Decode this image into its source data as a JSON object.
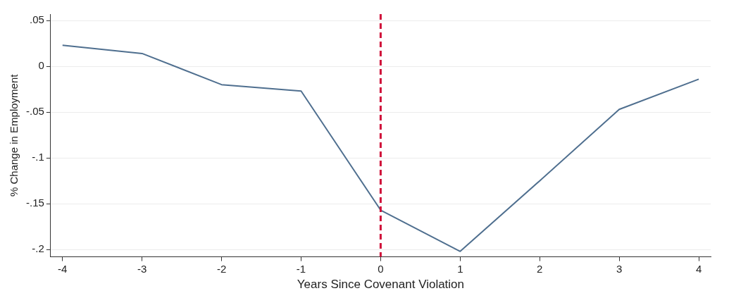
{
  "chart_data": {
    "type": "line",
    "xlabel": "Years Since Covenant Violation",
    "ylabel": "% Change in Employment",
    "x": [
      -4,
      -3,
      -2,
      -1,
      0,
      1,
      2,
      3,
      4
    ],
    "series": [
      {
        "color": "#4f6f8f",
        "values": [
          0.023,
          0.014,
          -0.02,
          -0.027,
          -0.157,
          -0.202,
          -0.125,
          -0.047,
          -0.014
        ]
      }
    ],
    "xlim": [
      -4.15,
      4.15
    ],
    "xticks": [
      -4,
      -3,
      -2,
      -1,
      0,
      1,
      2,
      3,
      4
    ],
    "ylim": [
      -0.208,
      0.057
    ],
    "yticks": [
      {
        "value": -0.2,
        "label": "-.2"
      },
      {
        "value": -0.15,
        "label": "-.15"
      },
      {
        "value": -0.1,
        "label": "-.1"
      },
      {
        "value": -0.05,
        "label": "-.05"
      },
      {
        "value": 0,
        "label": "0"
      },
      {
        "value": 0.05,
        "label": ".05"
      }
    ],
    "ref_lines": [
      {
        "axis": "x",
        "value": 0,
        "color": "#d0103a",
        "line_style": "dashed"
      }
    ],
    "grid": "y",
    "legend": false,
    "marker": "none",
    "line_style": "solid"
  }
}
